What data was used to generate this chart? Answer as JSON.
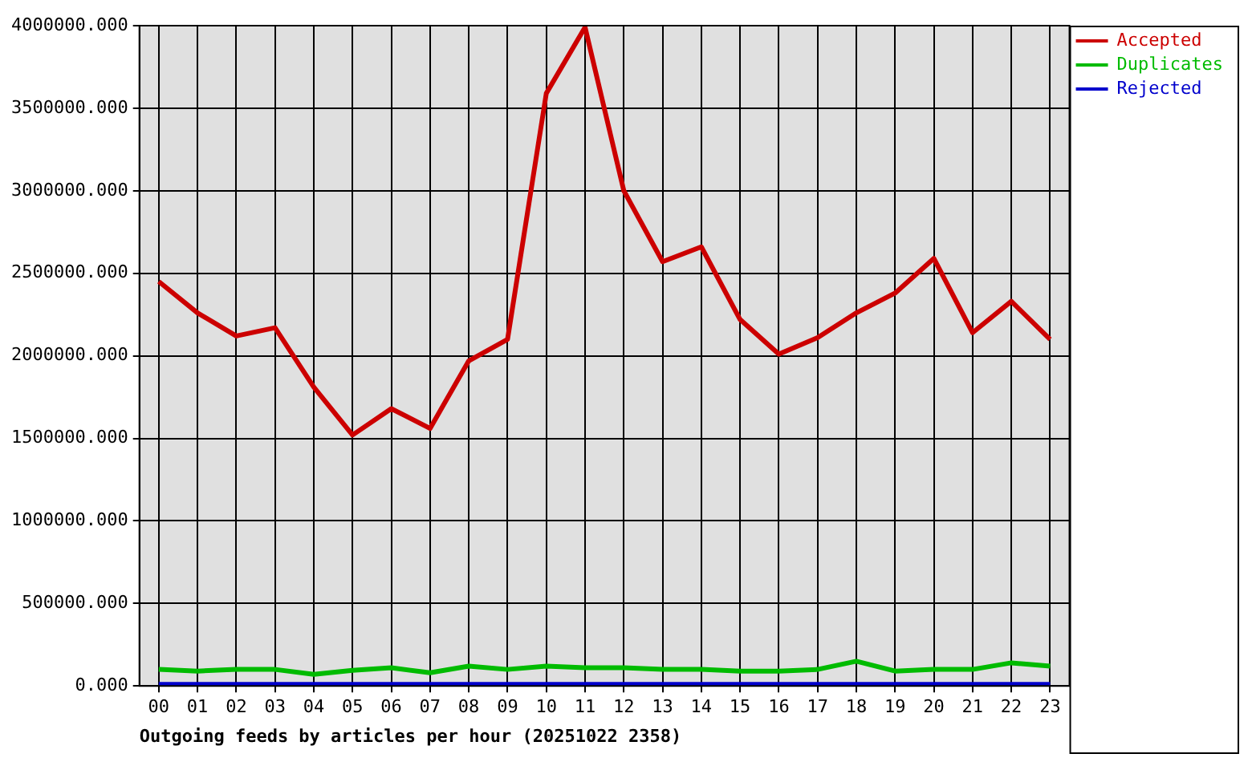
{
  "chart_data": {
    "type": "line",
    "xlabel": "Outgoing feeds by articles per hour (20251022 2358)",
    "categories": [
      "00",
      "01",
      "02",
      "03",
      "04",
      "05",
      "06",
      "07",
      "08",
      "09",
      "10",
      "11",
      "12",
      "13",
      "14",
      "15",
      "16",
      "17",
      "18",
      "19",
      "20",
      "21",
      "22",
      "23"
    ],
    "series": [
      {
        "name": "Accepted",
        "color": "#cc0000",
        "values": [
          2450000,
          2260000,
          2120000,
          2170000,
          1810000,
          1520000,
          1680000,
          1560000,
          1970000,
          2100000,
          3590000,
          3990000,
          3000000,
          2570000,
          2660000,
          2220000,
          2010000,
          2110000,
          2260000,
          2380000,
          2590000,
          2140000,
          2330000,
          2100000
        ]
      },
      {
        "name": "Duplicates",
        "color": "#00bb00",
        "values": [
          100000,
          90000,
          100000,
          100000,
          70000,
          95000,
          110000,
          80000,
          120000,
          100000,
          120000,
          110000,
          110000,
          100000,
          100000,
          90000,
          90000,
          100000,
          150000,
          90000,
          100000,
          100000,
          140000,
          120000
        ]
      },
      {
        "name": "Rejected",
        "color": "#0000cc",
        "values": [
          10000,
          10000,
          10000,
          10000,
          10000,
          10000,
          10000,
          10000,
          10000,
          10000,
          10000,
          10000,
          10000,
          10000,
          10000,
          10000,
          10000,
          10000,
          10000,
          10000,
          10000,
          10000,
          10000,
          10000
        ]
      }
    ],
    "ylim": [
      0,
      4000000
    ],
    "yticks": [
      {
        "value": 0,
        "label": "0.000"
      },
      {
        "value": 500000,
        "label": "500000.000"
      },
      {
        "value": 1000000,
        "label": "1000000.000"
      },
      {
        "value": 1500000,
        "label": "1500000.000"
      },
      {
        "value": 2000000,
        "label": "2000000.000"
      },
      {
        "value": 2500000,
        "label": "2500000.000"
      },
      {
        "value": 3000000,
        "label": "3000000.000"
      },
      {
        "value": 3500000,
        "label": "3500000.000"
      },
      {
        "value": 4000000,
        "label": "4000000.000"
      }
    ],
    "grid": true,
    "legend": "top right",
    "marker": "none",
    "line_style": "solid"
  }
}
